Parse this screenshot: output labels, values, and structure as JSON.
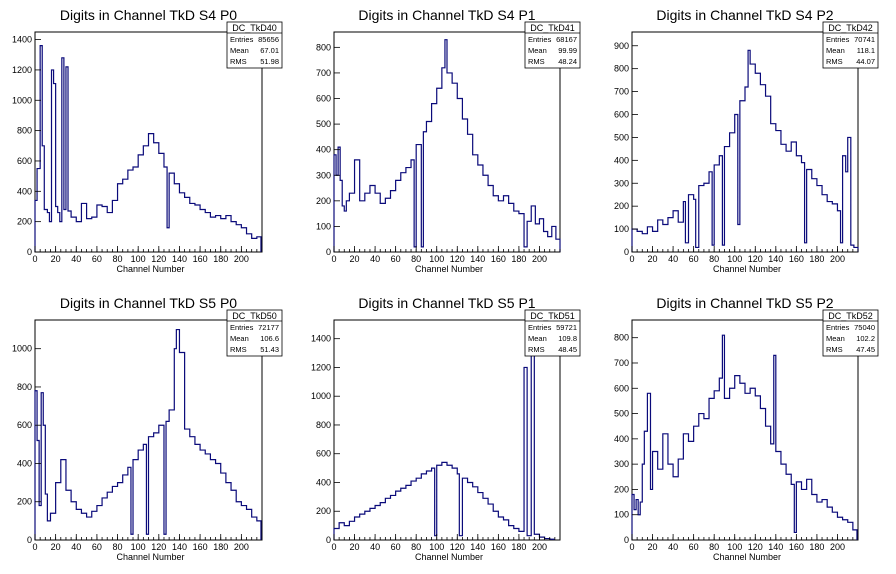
{
  "chart_data": [
    {
      "type": "bar",
      "title": "Digits in Channel TkD S4 P0",
      "xlabel": "Channel Number",
      "ylabel": "",
      "xlim": [
        0,
        220
      ],
      "ylim": [
        0,
        1450
      ],
      "xticks": [
        0,
        20,
        40,
        60,
        80,
        100,
        120,
        140,
        160,
        180,
        200
      ],
      "yticks": [
        0,
        200,
        400,
        600,
        800,
        1000,
        1200,
        1400
      ],
      "stats": {
        "name": "DC_TkD40",
        "entries": "85656",
        "mean": "67.01",
        "rms": "51.98"
      },
      "bins": [
        [
          0,
          340
        ],
        [
          2,
          550
        ],
        [
          5,
          1360
        ],
        [
          7,
          700
        ],
        [
          9,
          280
        ],
        [
          12,
          260
        ],
        [
          14,
          200
        ],
        [
          16,
          1200
        ],
        [
          18,
          1110
        ],
        [
          20,
          300
        ],
        [
          22,
          260
        ],
        [
          24,
          200
        ],
        [
          26,
          1280
        ],
        [
          28,
          280
        ],
        [
          30,
          1220
        ],
        [
          32,
          270
        ],
        [
          35,
          230
        ],
        [
          40,
          200
        ],
        [
          45,
          320
        ],
        [
          50,
          220
        ],
        [
          55,
          230
        ],
        [
          60,
          310
        ],
        [
          65,
          300
        ],
        [
          70,
          260
        ],
        [
          75,
          340
        ],
        [
          80,
          450
        ],
        [
          85,
          480
        ],
        [
          90,
          540
        ],
        [
          95,
          560
        ],
        [
          100,
          640
        ],
        [
          105,
          700
        ],
        [
          110,
          780
        ],
        [
          115,
          720
        ],
        [
          120,
          650
        ],
        [
          125,
          560
        ],
        [
          128,
          160
        ],
        [
          130,
          520
        ],
        [
          135,
          450
        ],
        [
          140,
          390
        ],
        [
          145,
          360
        ],
        [
          150,
          320
        ],
        [
          155,
          310
        ],
        [
          160,
          280
        ],
        [
          165,
          260
        ],
        [
          170,
          230
        ],
        [
          175,
          240
        ],
        [
          180,
          220
        ],
        [
          185,
          240
        ],
        [
          190,
          200
        ],
        [
          195,
          180
        ],
        [
          200,
          160
        ],
        [
          205,
          120
        ],
        [
          210,
          90
        ],
        [
          215,
          100
        ]
      ]
    },
    {
      "type": "bar",
      "title": "Digits in Channel TkD S4 P1",
      "xlabel": "Channel Number",
      "ylabel": "",
      "xlim": [
        0,
        220
      ],
      "ylim": [
        0,
        860
      ],
      "xticks": [
        0,
        20,
        40,
        60,
        80,
        100,
        120,
        140,
        160,
        180,
        200
      ],
      "yticks": [
        0,
        100,
        200,
        300,
        400,
        500,
        600,
        700,
        800
      ],
      "stats": {
        "name": "DC_TkD41",
        "entries": "68167",
        "mean": "99.99",
        "rms": "48.24"
      },
      "bins": [
        [
          0,
          380
        ],
        [
          2,
          300
        ],
        [
          4,
          410
        ],
        [
          6,
          280
        ],
        [
          8,
          180
        ],
        [
          10,
          160
        ],
        [
          12,
          200
        ],
        [
          15,
          230
        ],
        [
          20,
          360
        ],
        [
          25,
          200
        ],
        [
          30,
          230
        ],
        [
          35,
          260
        ],
        [
          40,
          230
        ],
        [
          45,
          190
        ],
        [
          50,
          210
        ],
        [
          55,
          240
        ],
        [
          60,
          280
        ],
        [
          65,
          310
        ],
        [
          70,
          330
        ],
        [
          75,
          360
        ],
        [
          78,
          20
        ],
        [
          80,
          420
        ],
        [
          85,
          20
        ],
        [
          87,
          470
        ],
        [
          90,
          510
        ],
        [
          95,
          580
        ],
        [
          100,
          640
        ],
        [
          105,
          720
        ],
        [
          108,
          830
        ],
        [
          110,
          700
        ],
        [
          115,
          660
        ],
        [
          120,
          600
        ],
        [
          125,
          520
        ],
        [
          130,
          460
        ],
        [
          135,
          380
        ],
        [
          140,
          340
        ],
        [
          145,
          300
        ],
        [
          150,
          260
        ],
        [
          155,
          220
        ],
        [
          160,
          200
        ],
        [
          165,
          220
        ],
        [
          170,
          190
        ],
        [
          175,
          160
        ],
        [
          180,
          150
        ],
        [
          185,
          20
        ],
        [
          188,
          120
        ],
        [
          192,
          180
        ],
        [
          196,
          110
        ],
        [
          200,
          130
        ],
        [
          204,
          80
        ],
        [
          208,
          60
        ],
        [
          212,
          100
        ],
        [
          216,
          50
        ]
      ]
    },
    {
      "type": "bar",
      "title": "Digits in Channel TkD S4 P2",
      "xlabel": "Channel Number",
      "ylabel": "",
      "xlim": [
        0,
        220
      ],
      "ylim": [
        0,
        960
      ],
      "xticks": [
        0,
        20,
        40,
        60,
        80,
        100,
        120,
        140,
        160,
        180,
        200
      ],
      "yticks": [
        0,
        100,
        200,
        300,
        400,
        500,
        600,
        700,
        800,
        900
      ],
      "stats": {
        "name": "DC_TkD42",
        "entries": "70741",
        "mean": "118.1",
        "rms": "44.07"
      },
      "bins": [
        [
          0,
          100
        ],
        [
          5,
          90
        ],
        [
          10,
          80
        ],
        [
          15,
          110
        ],
        [
          20,
          90
        ],
        [
          25,
          140
        ],
        [
          30,
          120
        ],
        [
          35,
          150
        ],
        [
          40,
          180
        ],
        [
          45,
          130
        ],
        [
          50,
          220
        ],
        [
          52,
          40
        ],
        [
          55,
          250
        ],
        [
          60,
          230
        ],
        [
          62,
          20
        ],
        [
          65,
          290
        ],
        [
          70,
          300
        ],
        [
          75,
          350
        ],
        [
          78,
          30
        ],
        [
          80,
          380
        ],
        [
          85,
          420
        ],
        [
          88,
          30
        ],
        [
          90,
          460
        ],
        [
          95,
          520
        ],
        [
          100,
          600
        ],
        [
          103,
          120
        ],
        [
          105,
          660
        ],
        [
          110,
          720
        ],
        [
          113,
          880
        ],
        [
          115,
          820
        ],
        [
          120,
          780
        ],
        [
          125,
          730
        ],
        [
          130,
          680
        ],
        [
          135,
          560
        ],
        [
          140,
          530
        ],
        [
          145,
          470
        ],
        [
          150,
          440
        ],
        [
          155,
          480
        ],
        [
          160,
          420
        ],
        [
          165,
          390
        ],
        [
          168,
          40
        ],
        [
          170,
          360
        ],
        [
          175,
          320
        ],
        [
          180,
          290
        ],
        [
          185,
          250
        ],
        [
          190,
          220
        ],
        [
          195,
          210
        ],
        [
          200,
          180
        ],
        [
          203,
          40
        ],
        [
          205,
          420
        ],
        [
          208,
          350
        ],
        [
          210,
          500
        ],
        [
          213,
          30
        ],
        [
          216,
          20
        ]
      ]
    },
    {
      "type": "bar",
      "title": "Digits in Channel TkD S5 P0",
      "xlabel": "Channel Number",
      "ylabel": "",
      "xlim": [
        0,
        220
      ],
      "ylim": [
        0,
        1150
      ],
      "xticks": [
        0,
        20,
        40,
        60,
        80,
        100,
        120,
        140,
        160,
        180,
        200
      ],
      "yticks": [
        0,
        200,
        400,
        600,
        800,
        1000
      ],
      "stats": {
        "name": "DC_TkD50",
        "entries": "72177",
        "mean": "106.6",
        "rms": "51.43"
      },
      "bins": [
        [
          0,
          780
        ],
        [
          2,
          520
        ],
        [
          4,
          180
        ],
        [
          6,
          770
        ],
        [
          8,
          600
        ],
        [
          10,
          240
        ],
        [
          12,
          100
        ],
        [
          15,
          140
        ],
        [
          20,
          300
        ],
        [
          25,
          420
        ],
        [
          30,
          260
        ],
        [
          35,
          200
        ],
        [
          40,
          160
        ],
        [
          45,
          140
        ],
        [
          50,
          120
        ],
        [
          55,
          150
        ],
        [
          60,
          180
        ],
        [
          65,
          220
        ],
        [
          70,
          250
        ],
        [
          75,
          280
        ],
        [
          80,
          300
        ],
        [
          85,
          340
        ],
        [
          90,
          380
        ],
        [
          93,
          30
        ],
        [
          95,
          420
        ],
        [
          100,
          470
        ],
        [
          105,
          500
        ],
        [
          108,
          30
        ],
        [
          110,
          540
        ],
        [
          115,
          560
        ],
        [
          120,
          600
        ],
        [
          125,
          30
        ],
        [
          127,
          620
        ],
        [
          130,
          680
        ],
        [
          135,
          1000
        ],
        [
          137,
          1100
        ],
        [
          140,
          980
        ],
        [
          145,
          580
        ],
        [
          150,
          540
        ],
        [
          155,
          500
        ],
        [
          160,
          470
        ],
        [
          165,
          450
        ],
        [
          170,
          420
        ],
        [
          175,
          400
        ],
        [
          180,
          350
        ],
        [
          185,
          300
        ],
        [
          190,
          260
        ],
        [
          195,
          200
        ],
        [
          200,
          180
        ],
        [
          205,
          160
        ],
        [
          210,
          120
        ],
        [
          215,
          100
        ]
      ]
    },
    {
      "type": "bar",
      "title": "Digits in Channel TkD S5 P1",
      "xlabel": "Channel Number",
      "ylabel": "",
      "xlim": [
        0,
        220
      ],
      "ylim": [
        0,
        1530
      ],
      "xticks": [
        0,
        20,
        40,
        60,
        80,
        100,
        120,
        140,
        160,
        180,
        200
      ],
      "yticks": [
        0,
        200,
        400,
        600,
        800,
        1000,
        1200,
        1400
      ],
      "stats": {
        "name": "DC_TkD51",
        "entries": "59721",
        "mean": "109.8",
        "rms": "48.45"
      },
      "bins": [
        [
          0,
          80
        ],
        [
          5,
          120
        ],
        [
          10,
          100
        ],
        [
          15,
          130
        ],
        [
          20,
          160
        ],
        [
          25,
          180
        ],
        [
          30,
          200
        ],
        [
          35,
          220
        ],
        [
          40,
          240
        ],
        [
          45,
          260
        ],
        [
          50,
          290
        ],
        [
          55,
          310
        ],
        [
          60,
          340
        ],
        [
          65,
          360
        ],
        [
          70,
          380
        ],
        [
          75,
          410
        ],
        [
          80,
          430
        ],
        [
          85,
          460
        ],
        [
          90,
          480
        ],
        [
          95,
          500
        ],
        [
          98,
          30
        ],
        [
          100,
          520
        ],
        [
          105,
          540
        ],
        [
          110,
          520
        ],
        [
          115,
          500
        ],
        [
          120,
          460
        ],
        [
          122,
          30
        ],
        [
          125,
          430
        ],
        [
          130,
          400
        ],
        [
          135,
          370
        ],
        [
          140,
          330
        ],
        [
          145,
          290
        ],
        [
          150,
          250
        ],
        [
          155,
          200
        ],
        [
          160,
          160
        ],
        [
          165,
          140
        ],
        [
          170,
          100
        ],
        [
          175,
          80
        ],
        [
          180,
          60
        ],
        [
          185,
          1200
        ],
        [
          188,
          30
        ],
        [
          192,
          1400
        ],
        [
          195,
          40
        ],
        [
          200,
          20
        ],
        [
          205,
          10
        ],
        [
          210,
          5
        ]
      ]
    },
    {
      "type": "bar",
      "title": "Digits in Channel TkD S5 P2",
      "xlabel": "Channel Number",
      "ylabel": "",
      "xlim": [
        0,
        220
      ],
      "ylim": [
        0,
        870
      ],
      "xticks": [
        0,
        20,
        40,
        60,
        80,
        100,
        120,
        140,
        160,
        180,
        200
      ],
      "yticks": [
        0,
        100,
        200,
        300,
        400,
        500,
        600,
        700,
        800
      ],
      "stats": {
        "name": "DC_TkD52",
        "entries": "75040",
        "mean": "102.2",
        "rms": "47.45"
      },
      "bins": [
        [
          0,
          180
        ],
        [
          2,
          120
        ],
        [
          4,
          160
        ],
        [
          6,
          100
        ],
        [
          8,
          150
        ],
        [
          10,
          300
        ],
        [
          12,
          430
        ],
        [
          15,
          580
        ],
        [
          18,
          200
        ],
        [
          20,
          350
        ],
        [
          25,
          280
        ],
        [
          30,
          420
        ],
        [
          35,
          300
        ],
        [
          40,
          250
        ],
        [
          45,
          320
        ],
        [
          50,
          420
        ],
        [
          55,
          390
        ],
        [
          60,
          450
        ],
        [
          65,
          500
        ],
        [
          70,
          480
        ],
        [
          75,
          560
        ],
        [
          80,
          590
        ],
        [
          85,
          640
        ],
        [
          88,
          810
        ],
        [
          90,
          560
        ],
        [
          95,
          600
        ],
        [
          100,
          650
        ],
        [
          105,
          620
        ],
        [
          110,
          580
        ],
        [
          115,
          600
        ],
        [
          120,
          570
        ],
        [
          125,
          520
        ],
        [
          130,
          450
        ],
        [
          135,
          380
        ],
        [
          138,
          730
        ],
        [
          140,
          350
        ],
        [
          145,
          300
        ],
        [
          150,
          260
        ],
        [
          155,
          220
        ],
        [
          158,
          30
        ],
        [
          160,
          230
        ],
        [
          165,
          200
        ],
        [
          170,
          240
        ],
        [
          175,
          180
        ],
        [
          180,
          150
        ],
        [
          185,
          160
        ],
        [
          190,
          130
        ],
        [
          195,
          110
        ],
        [
          200,
          90
        ],
        [
          205,
          80
        ],
        [
          210,
          70
        ],
        [
          215,
          40
        ]
      ]
    }
  ]
}
